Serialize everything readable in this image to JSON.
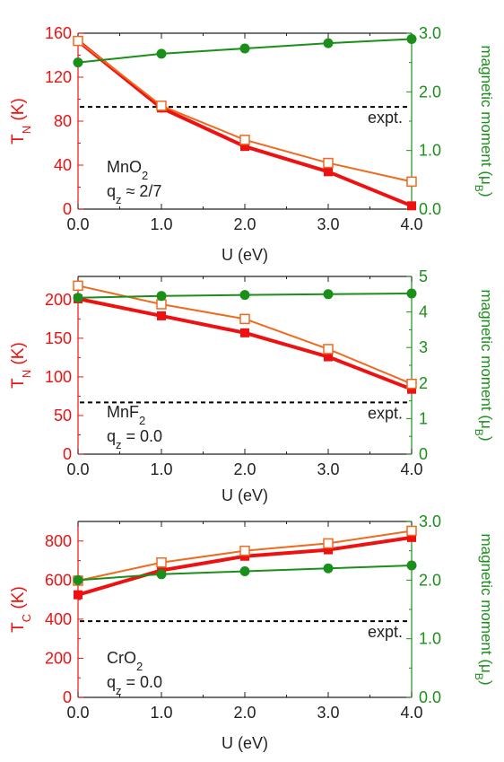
{
  "colors": {
    "red": "#ee1111",
    "orange": "#f06a1e",
    "green": "#1a8f1a",
    "axis": "#222222",
    "expt_line": "#000000"
  },
  "chart_data": [
    {
      "type": "line",
      "xlabel": "U (eV)",
      "ylabel_left": {
        "main": "T",
        "sub": "N",
        "tail": " (K)"
      },
      "ylabel_right": {
        "main": "magnetic moment (μ",
        "sub": "B",
        "tail": ")"
      },
      "x": [
        0.0,
        1.0,
        2.0,
        3.0,
        4.0
      ],
      "xlim": [
        0,
        4
      ],
      "xticks": [
        "0.0",
        "1.0",
        "2.0",
        "3.0",
        "4.0"
      ],
      "ylim_left": [
        0,
        160
      ],
      "yticks_left": [
        "0",
        "40",
        "80",
        "120",
        "160"
      ],
      "ylim_right": [
        0,
        3.0
      ],
      "yticks_right": [
        "0.0",
        "1.0",
        "2.0",
        "3.0"
      ],
      "expt": {
        "label": "expt.",
        "value": 93
      },
      "material": {
        "formula": "MnO",
        "sub": "2"
      },
      "qz": "≈ 2/7",
      "series": [
        {
          "axis": "left",
          "marker": "square-filled",
          "color": "red",
          "values": [
            153,
            92,
            57,
            34,
            3
          ]
        },
        {
          "axis": "left",
          "marker": "square-open",
          "color": "orange",
          "values": [
            153,
            94,
            63,
            42,
            25
          ]
        },
        {
          "axis": "right",
          "marker": "circle-filled",
          "color": "green",
          "values": [
            2.5,
            2.65,
            2.74,
            2.83,
            2.9
          ]
        }
      ]
    },
    {
      "type": "line",
      "xlabel": "U (eV)",
      "ylabel_left": {
        "main": "T",
        "sub": "N",
        "tail": " (K)"
      },
      "ylabel_right": {
        "main": "magnetic moment (μ",
        "sub": "B",
        "tail": ")"
      },
      "x": [
        0.0,
        1.0,
        2.0,
        3.0,
        4.0
      ],
      "xlim": [
        0,
        4
      ],
      "xticks": [
        "0.0",
        "1.0",
        "2.0",
        "3.0",
        "4.0"
      ],
      "ylim_left": [
        0,
        230
      ],
      "yticks_left": [
        "0",
        "50",
        "100",
        "150",
        "200"
      ],
      "ylim_right": [
        0,
        5
      ],
      "yticks_right": [
        "0",
        "1",
        "2",
        "3",
        "4",
        "5"
      ],
      "expt": {
        "label": "expt.",
        "value": 67
      },
      "material": {
        "formula": "MnF",
        "sub": "2"
      },
      "qz": "= 0.0",
      "series": [
        {
          "axis": "left",
          "marker": "square-filled",
          "color": "red",
          "values": [
            201,
            179,
            157,
            126,
            84
          ]
        },
        {
          "axis": "left",
          "marker": "square-open",
          "color": "orange",
          "values": [
            218,
            194,
            175,
            136,
            91
          ]
        },
        {
          "axis": "right",
          "marker": "circle-filled",
          "color": "green",
          "values": [
            4.4,
            4.45,
            4.48,
            4.5,
            4.52
          ]
        }
      ]
    },
    {
      "type": "line",
      "xlabel": "U (eV)",
      "ylabel_left": {
        "main": "T",
        "sub": "C",
        "tail": " (K)"
      },
      "ylabel_right": {
        "main": "magnetic moment (μ",
        "sub": "B",
        "tail": ")"
      },
      "x": [
        0.0,
        1.0,
        2.0,
        3.0,
        4.0
      ],
      "xlim": [
        0,
        4
      ],
      "xticks": [
        "0.0",
        "1.0",
        "2.0",
        "3.0",
        "4.0"
      ],
      "ylim_left": [
        0,
        900
      ],
      "yticks_left": [
        "0",
        "200",
        "400",
        "600",
        "800"
      ],
      "ylim_right": [
        0,
        3.0
      ],
      "yticks_right": [
        "0.0",
        "1.0",
        "2.0",
        "3.0"
      ],
      "expt": {
        "label": "expt.",
        "value": 390
      },
      "material": {
        "formula": "CrO",
        "sub": "2"
      },
      "qz": "= 0.0",
      "series": [
        {
          "axis": "left",
          "marker": "square-filled",
          "color": "red",
          "values": [
            525,
            650,
            722,
            755,
            818
          ]
        },
        {
          "axis": "left",
          "marker": "square-open",
          "color": "orange",
          "values": [
            597,
            690,
            750,
            788,
            852
          ]
        },
        {
          "axis": "right",
          "marker": "circle-filled",
          "color": "green",
          "values": [
            2.0,
            2.1,
            2.15,
            2.2,
            2.25
          ]
        }
      ]
    }
  ]
}
